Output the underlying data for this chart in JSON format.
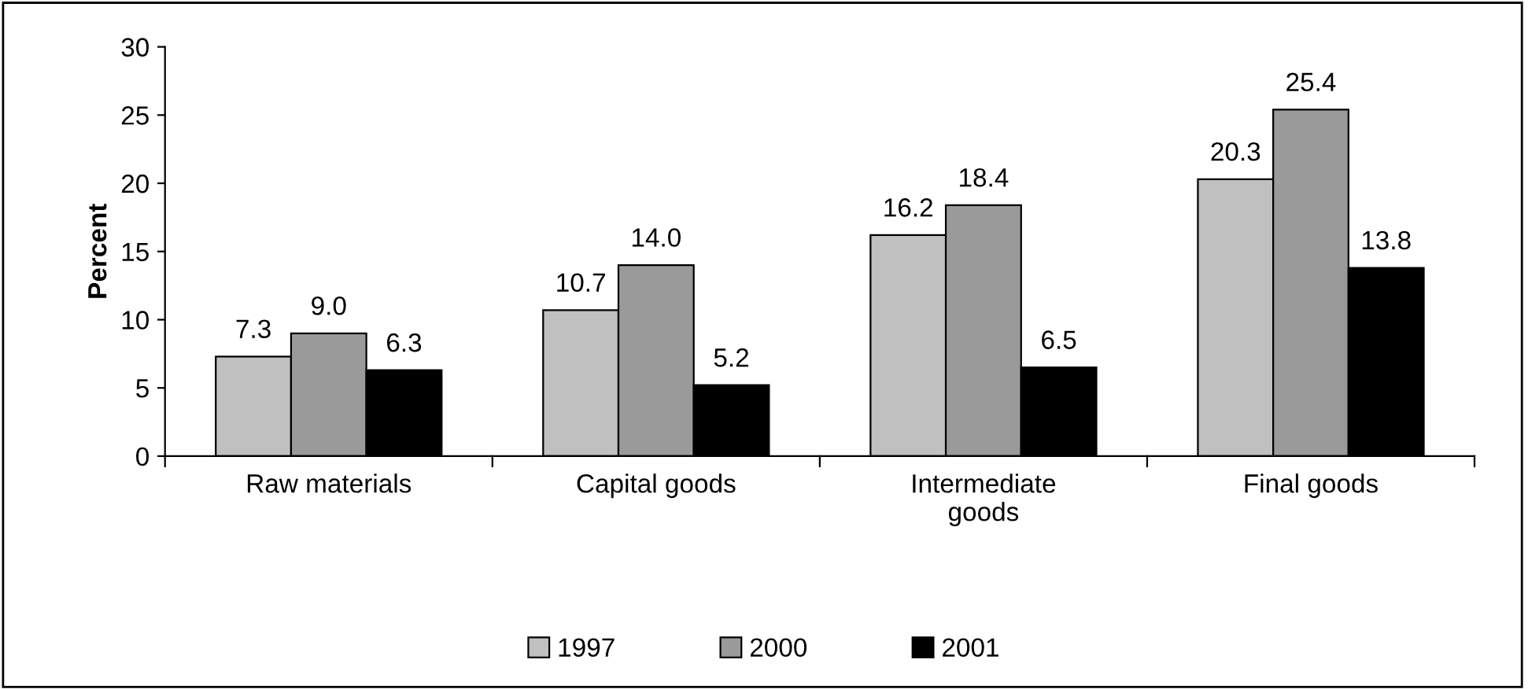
{
  "chart_data": {
    "type": "bar",
    "ylabel": "Percent",
    "categories": [
      "Raw materials",
      "Capital goods",
      "Intermediate\ngoods",
      "Final goods"
    ],
    "series": [
      {
        "name": "1997",
        "color": "#c0c0c0",
        "values": [
          7.3,
          10.7,
          16.2,
          20.3
        ],
        "value_labels": [
          "7.3",
          "10.7",
          "16.2",
          "20.3"
        ]
      },
      {
        "name": "2000",
        "color": "#9a9a9a",
        "values": [
          9.0,
          14.0,
          18.4,
          25.4
        ],
        "value_labels": [
          "9.0",
          "14.0",
          "18.4",
          "25.4"
        ]
      },
      {
        "name": "2001",
        "color": "#000000",
        "values": [
          6.3,
          5.2,
          6.5,
          13.8
        ],
        "value_labels": [
          "6.3",
          "5.2",
          "6.5",
          "13.8"
        ]
      }
    ],
    "ylim": [
      0,
      30
    ],
    "yticks": [
      0,
      5,
      10,
      15,
      20,
      25,
      30
    ],
    "grid": false,
    "legend": "bottom"
  }
}
